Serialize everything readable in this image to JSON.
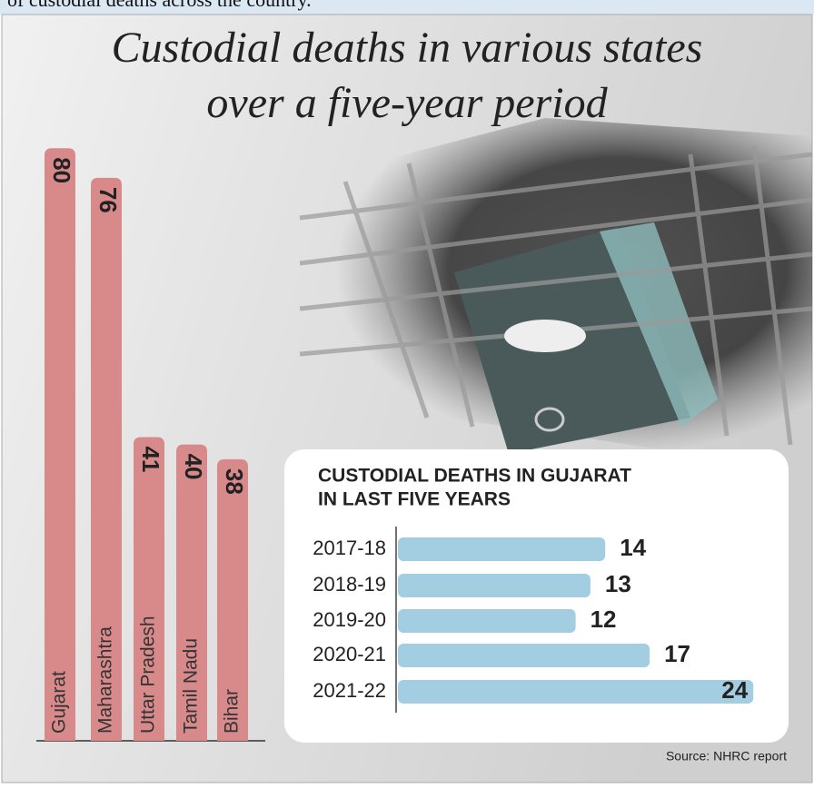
{
  "caption": "of custodial deaths across the country.",
  "source": "Source: NHRC report",
  "chart_data": [
    {
      "type": "bar",
      "title": [
        "Custodial deaths in various states",
        "over a five-year period"
      ],
      "categories": [
        "Gujarat",
        "Maharashtra",
        "Uttar Pradesh",
        "Tamil Nadu",
        "Bihar"
      ],
      "values": [
        80,
        76,
        41,
        40,
        38
      ],
      "color": "#d88a8b"
    },
    {
      "type": "hbar",
      "title": [
        "CUSTODIAL DEATHS IN GUJARAT",
        "IN LAST FIVE YEARS"
      ],
      "categories": [
        "2017-18",
        "2018-19",
        "2019-20",
        "2020-21",
        "2021-22"
      ],
      "values": [
        14,
        13,
        12,
        17,
        24
      ],
      "color": "#a3cde0"
    }
  ]
}
